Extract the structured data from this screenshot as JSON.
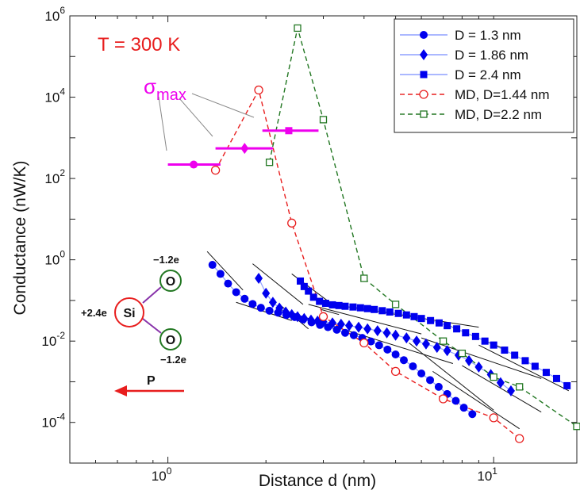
{
  "chart_data": {
    "type": "scatter",
    "title": "",
    "xlabel": "Distance d (nm)",
    "ylabel": "Conductance (nW/K)",
    "x_scale": "log",
    "y_scale": "log",
    "xlim": [
      0.5,
      18
    ],
    "ylim": [
      1e-05,
      1000000
    ],
    "x_ticks": [
      {
        "value": 1,
        "mant": "10",
        "exp": "0"
      },
      {
        "value": 10,
        "mant": "10",
        "exp": "1"
      }
    ],
    "y_ticks": [
      {
        "value": 1000000,
        "mant": "10",
        "exp": "6"
      },
      {
        "value": 10000,
        "mant": "10",
        "exp": "4"
      },
      {
        "value": 100,
        "mant": "10",
        "exp": "2"
      },
      {
        "value": 1,
        "mant": "10",
        "exp": "0"
      },
      {
        "value": 0.01,
        "mant": "10",
        "exp": "-2"
      },
      {
        "value": 0.0001,
        "mant": "10",
        "exp": "-4"
      }
    ],
    "legend_position": "top-right",
    "series": [
      {
        "name": "D = 1.3 nm",
        "color": "#0000ee",
        "marker": "circle",
        "line": "solid",
        "x": [
          1.37,
          1.45,
          1.53,
          1.62,
          1.72,
          1.82,
          1.93,
          2.05,
          2.18,
          2.31,
          2.45,
          2.6,
          2.76,
          2.93,
          3.1,
          3.3,
          3.5,
          3.72,
          3.95,
          4.2,
          4.45,
          4.72,
          5.0,
          5.3,
          5.65,
          6.0,
          6.38,
          6.78,
          7.2,
          7.65,
          8.1,
          8.6
        ],
        "y": [
          0.75,
          0.45,
          0.26,
          0.16,
          0.11,
          0.082,
          0.066,
          0.056,
          0.05,
          0.044,
          0.039,
          0.034,
          0.029,
          0.025,
          0.022,
          0.019,
          0.016,
          0.014,
          0.012,
          0.0098,
          0.0079,
          0.0062,
          0.0047,
          0.0034,
          0.0024,
          0.0016,
          0.0011,
          0.00075,
          0.0005,
          0.00034,
          0.00023,
          0.00016
        ]
      },
      {
        "name": "D = 1.86 nm",
        "color": "#0000ee",
        "marker": "diamond",
        "line": "solid",
        "x": [
          1.9,
          2.0,
          2.1,
          2.2,
          2.3,
          2.4,
          2.5,
          2.62,
          2.75,
          2.88,
          3.0,
          3.2,
          3.4,
          3.6,
          3.85,
          4.1,
          4.4,
          4.7,
          5.0,
          5.4,
          5.8,
          6.2,
          6.7,
          7.2,
          7.8,
          8.4,
          9.0,
          9.8,
          10.5,
          11.3
        ],
        "y": [
          0.35,
          0.15,
          0.09,
          0.065,
          0.052,
          0.045,
          0.04,
          0.036,
          0.033,
          0.031,
          0.03,
          0.028,
          0.026,
          0.024,
          0.022,
          0.02,
          0.018,
          0.016,
          0.014,
          0.012,
          0.01,
          0.0085,
          0.007,
          0.0058,
          0.0045,
          0.0033,
          0.0023,
          0.0015,
          0.00095,
          0.0006
        ]
      },
      {
        "name": "D = 2.4 nm",
        "color": "#0000ee",
        "marker": "square",
        "line": "solid",
        "x": [
          2.55,
          2.62,
          2.7,
          2.8,
          2.92,
          3.05,
          3.2,
          3.35,
          3.5,
          3.7,
          3.9,
          4.1,
          4.3,
          4.55,
          4.8,
          5.1,
          5.4,
          5.7,
          6.0,
          6.4,
          6.8,
          7.2,
          7.7,
          8.2,
          8.8,
          9.4,
          10.0,
          10.8,
          11.6,
          12.5,
          13.4,
          14.5,
          15.6,
          16.8
        ],
        "y": [
          0.3,
          0.22,
          0.17,
          0.12,
          0.095,
          0.085,
          0.078,
          0.075,
          0.072,
          0.069,
          0.066,
          0.063,
          0.06,
          0.056,
          0.052,
          0.048,
          0.044,
          0.04,
          0.036,
          0.032,
          0.028,
          0.024,
          0.02,
          0.016,
          0.013,
          0.01,
          0.008,
          0.006,
          0.0045,
          0.0033,
          0.0024,
          0.0017,
          0.0012,
          0.0008
        ]
      },
      {
        "name": "MD, D=1.44 nm",
        "color": "#e81e1e",
        "marker": "open-circle",
        "line": "dashed",
        "x": [
          1.4,
          1.9,
          2.4,
          3.0,
          4.0,
          5.0,
          7.0,
          10.0,
          12.0
        ],
        "y": [
          160,
          15000,
          8,
          0.04,
          0.009,
          0.0018,
          0.00038,
          0.00013,
          4e-05
        ]
      },
      {
        "name": "MD, D=2.2 nm",
        "color": "#227722",
        "marker": "open-square",
        "line": "dashed",
        "x": [
          2.05,
          2.5,
          3.0,
          4.0,
          5.0,
          7.0,
          8.0,
          10.0,
          12.0,
          18.0
        ],
        "y": [
          250,
          500000,
          2800,
          0.35,
          0.08,
          0.01,
          0.005,
          0.0013,
          0.00075,
          8e-05
        ]
      }
    ],
    "sigma_max": {
      "label": "σ",
      "subscript": "max",
      "color": "#ee00ee",
      "bars": [
        {
          "center": 1.2,
          "xmin": 1.0,
          "xmax": 1.45,
          "y": 220,
          "marker": "circle"
        },
        {
          "center": 1.72,
          "xmin": 1.4,
          "xmax": 2.1,
          "y": 550,
          "marker": "diamond"
        },
        {
          "center": 2.35,
          "xmin": 1.95,
          "xmax": 2.9,
          "y": 1500,
          "marker": "square"
        }
      ]
    },
    "annotations": {
      "temperature": "T = 300 K",
      "molecule": {
        "si": "Si",
        "o": "O",
        "si_charge": "+2.4e",
        "o_charge": "−1.2e"
      },
      "polarization": "P"
    }
  }
}
